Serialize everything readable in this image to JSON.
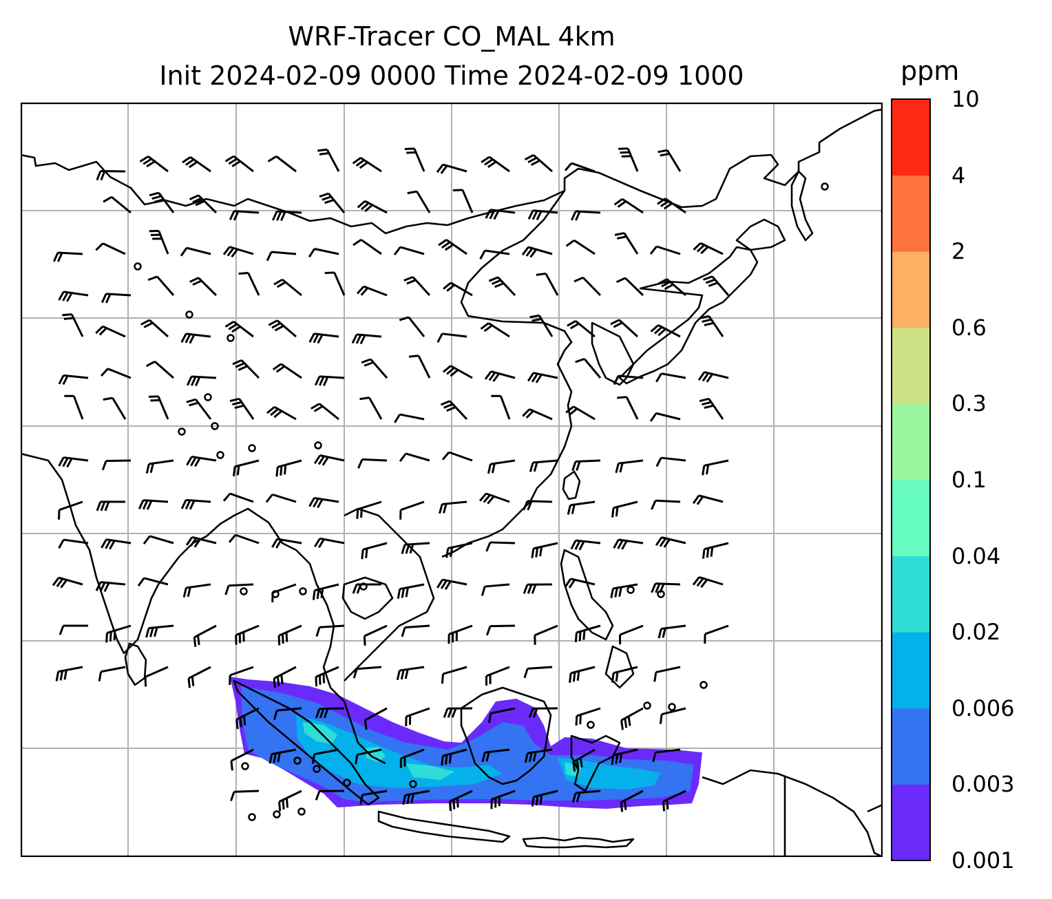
{
  "title": {
    "line1": "WRF-Tracer CO_MAL 4km",
    "line2": "Init 2024-02-09 0000 Time 2024-02-09 1000"
  },
  "colorbar": {
    "unit": "ppm",
    "levels": [
      "0.001",
      "0.003",
      "0.006",
      "0.02",
      "0.04",
      "0.1",
      "0.3",
      "0.6",
      "2",
      "4",
      "10"
    ],
    "colors": [
      "#6a2bfa",
      "#3473f2",
      "#04b1ea",
      "#2fdcd6",
      "#66fbbf",
      "#9af79e",
      "#cee185",
      "#fdb061",
      "#fe723d",
      "#ff2a16"
    ]
  },
  "map": {
    "background": "#ffffff",
    "coastline_color": "#000000",
    "gridline_color": "#b0b0b0",
    "barb_color": "#000000",
    "plume_levels_shown": [
      "0.001",
      "0.003",
      "0.006",
      "0.02"
    ]
  }
}
